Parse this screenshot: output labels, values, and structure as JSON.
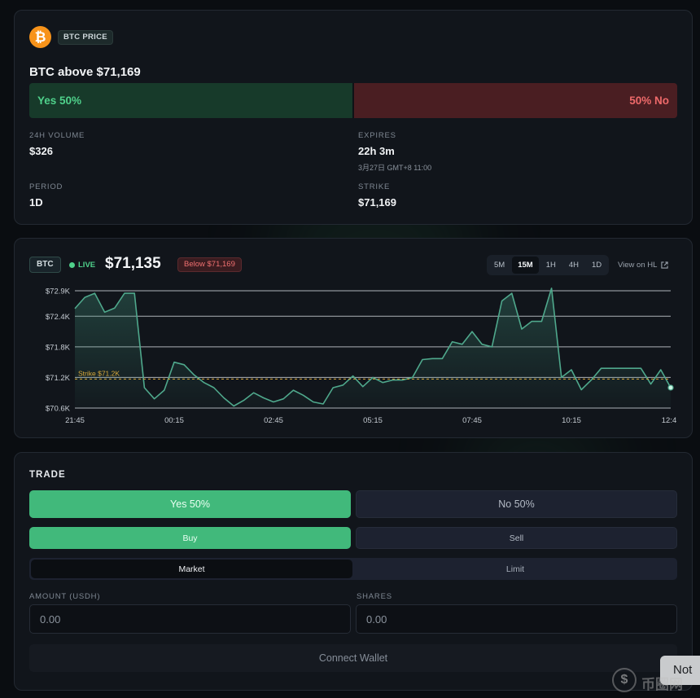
{
  "market": {
    "logo_glyph": "₿",
    "tag": "BTC PRICE",
    "title": "BTC above $71,169",
    "yes_label": "Yes 50%",
    "no_label": "50% No",
    "yes_prob": 0.5,
    "stats": {
      "volume_label": "24H VOLUME",
      "volume_value": "$326",
      "expires_label": "EXPIRES",
      "expires_value": "22h 3m",
      "expires_sub": "3月27日 GMT+8 11:00",
      "period_label": "PERIOD",
      "period_value": "1D",
      "strike_label": "STRIKE",
      "strike_value": "$71,169"
    }
  },
  "chart_header": {
    "asset": "BTC",
    "live": "LIVE",
    "price": "$71,135",
    "below_badge": "Below $71,169",
    "timeframes": [
      "5M",
      "15M",
      "1H",
      "4H",
      "1D"
    ],
    "active_timeframe": "15M",
    "view_link": "View on HL"
  },
  "chart_data": {
    "type": "area",
    "xlabel": "",
    "ylabel": "",
    "x_ticks": [
      "21:45",
      "00:15",
      "02:45",
      "05:15",
      "07:45",
      "10:15",
      "12:4"
    ],
    "y_ticks": [
      "$72.9K",
      "$72.4K",
      "$71.8K",
      "$71.2K",
      "$70.6K"
    ],
    "ylim": [
      70600,
      72900
    ],
    "strike": 71169,
    "strike_label": "Strike $71.2K",
    "series": [
      {
        "values": [
          72550,
          72770,
          72850,
          72480,
          72560,
          72850,
          72850,
          71000,
          70780,
          70950,
          71500,
          71450,
          71250,
          71100,
          71000,
          70800,
          70640,
          70750,
          70900,
          70800,
          70720,
          70780,
          70950,
          70850,
          70720,
          70680,
          71000,
          71050,
          71230,
          71020,
          71200,
          71100,
          71150,
          71150,
          71200,
          71550,
          71570,
          71570,
          71900,
          71850,
          72100,
          71850,
          71800,
          72700,
          72850,
          72150,
          72300,
          72300,
          72950,
          71200,
          71350,
          70960,
          71150,
          71380,
          71380,
          71380,
          71380,
          71380,
          71070,
          71350,
          71000
        ]
      }
    ],
    "grid": true
  },
  "trade": {
    "title": "TRADE",
    "yes_btn": "Yes 50%",
    "no_btn": "No 50%",
    "buy_btn": "Buy",
    "sell_btn": "Sell",
    "market_btn": "Market",
    "limit_btn": "Limit",
    "amount_label": "AMOUNT (USDH)",
    "amount_placeholder": "0.00",
    "shares_label": "SHARES",
    "shares_placeholder": "0.00",
    "connect_btn": "Connect Wallet"
  },
  "overlay": {
    "chip_text": "Not",
    "watermark": "币圈网"
  },
  "colors": {
    "yes": "#41b97b",
    "no": "#ee6a6a",
    "line": "#4fa88c",
    "strike": "#d9a93a"
  }
}
